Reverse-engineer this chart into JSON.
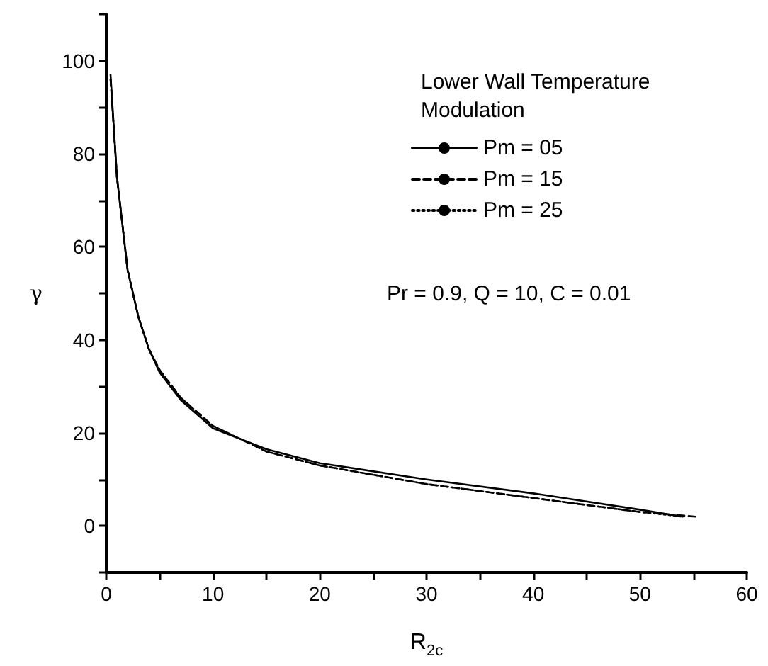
{
  "chart_data": {
    "type": "line",
    "xlabel": "R$_{2c}$",
    "ylabel": "γ",
    "legend_title": "Lower Wall Temperature\nModulation",
    "annotations": [
      "Pr = 0.9, Q = 10, C = 0.01"
    ],
    "xlim": [
      0,
      60
    ],
    "xticks": [
      0,
      {
        "value": 5,
        "label": null
      },
      10,
      {
        "value": 15,
        "label": null
      },
      20,
      {
        "value": 25,
        "label": null
      },
      30,
      {
        "value": 35,
        "label": null
      },
      40,
      {
        "value": 45,
        "label": null
      },
      50,
      {
        "value": 55,
        "label": null
      },
      60
    ],
    "ylim": [
      -10,
      110
    ],
    "yticks": [
      {
        "value": -10,
        "label": null
      },
      0,
      {
        "value": 10,
        "label": null
      },
      20,
      {
        "value": 30,
        "label": null
      },
      40,
      {
        "value": 50,
        "label": null
      },
      60,
      {
        "value": 70,
        "label": null
      },
      80,
      {
        "value": 90,
        "label": null
      },
      100,
      {
        "value": 110,
        "label": null
      }
    ],
    "grid": false,
    "legend": "top right",
    "marker": "none",
    "series": [
      {
        "name": "Pm = 05",
        "color": "#000000",
        "line_style": "solid",
        "x": [
          0.4,
          1,
          2,
          3,
          4,
          5,
          7,
          10,
          15,
          20,
          30,
          40,
          50,
          54
        ],
        "values": [
          97,
          75,
          55,
          45,
          38,
          33,
          27,
          21,
          16.5,
          13.5,
          10,
          7,
          3.5,
          2
        ]
      },
      {
        "name": "Pm = 15",
        "color": "#000000",
        "line_style": "dashed",
        "x": [
          0.4,
          1,
          2,
          3,
          4,
          5,
          7,
          10,
          15,
          20,
          30,
          40,
          50,
          55.2
        ],
        "values": [
          96,
          75,
          55,
          45,
          38,
          33.5,
          27.5,
          21.5,
          16,
          13,
          9,
          6,
          3,
          2
        ]
      },
      {
        "name": "Pm = 25",
        "color": "#000000",
        "line_style": "dotted",
        "x": [
          0.4,
          1,
          2,
          3,
          4,
          5,
          7,
          10,
          15,
          20,
          30,
          40,
          50,
          54
        ],
        "values": [
          96,
          75,
          55,
          45,
          38,
          33.5,
          27.5,
          21.5,
          16,
          13,
          9,
          6,
          3,
          2
        ]
      }
    ]
  }
}
